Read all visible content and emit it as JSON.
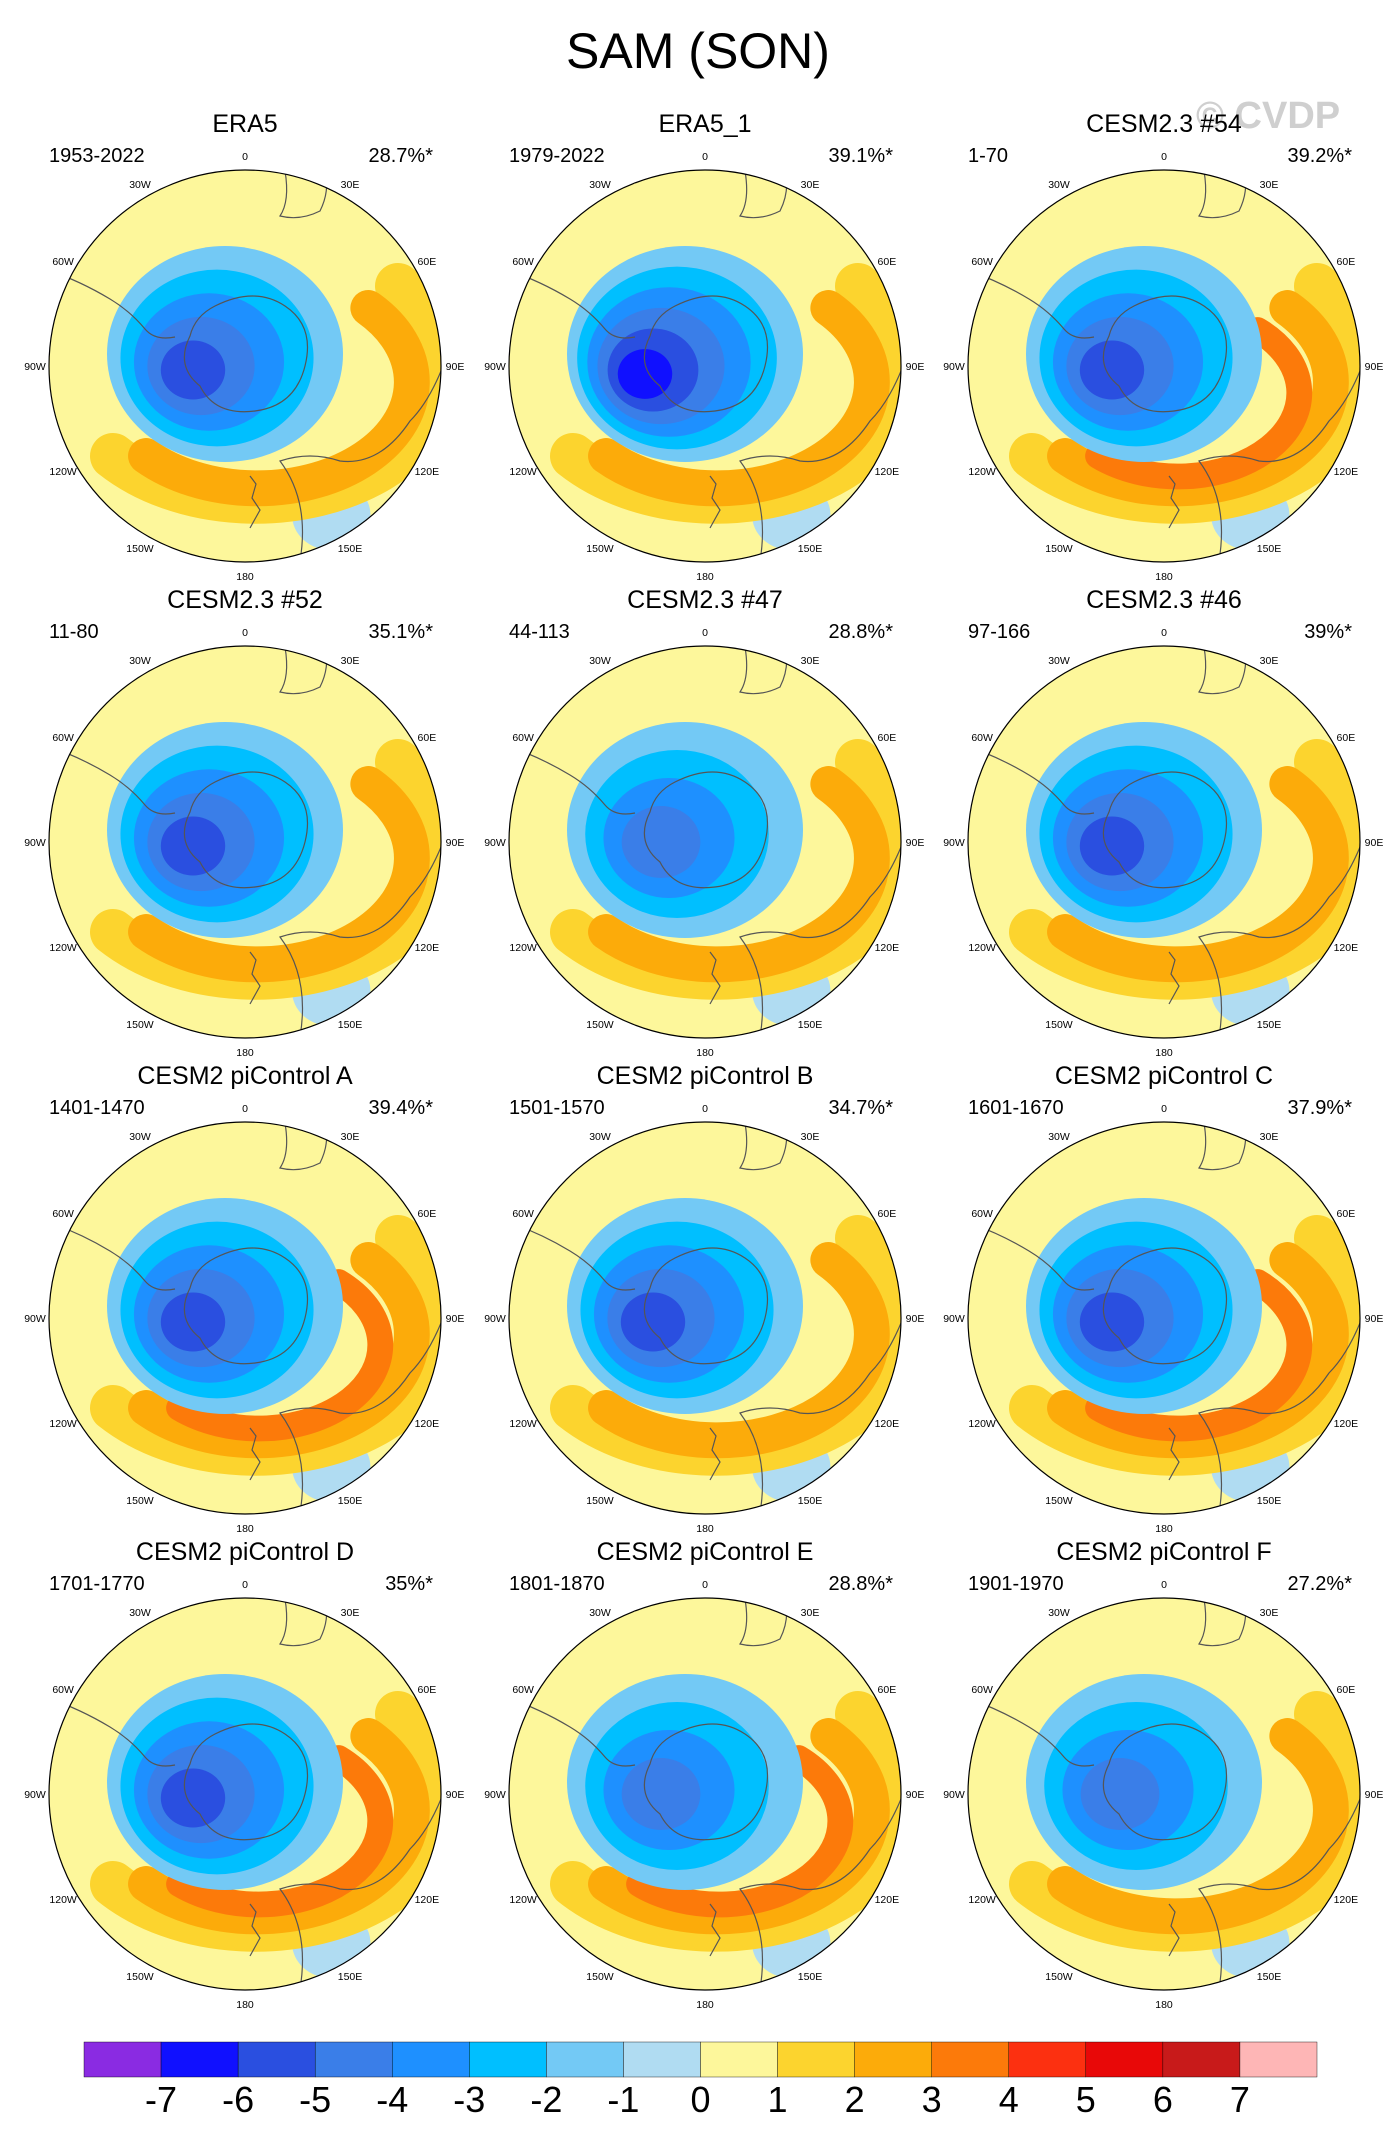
{
  "title": "SAM (SON)",
  "watermark": "© CVDP",
  "lon_labels": [
    "0",
    "30E",
    "60E",
    "90E",
    "120E",
    "150E",
    "180",
    "150W",
    "120W",
    "90W",
    "60W",
    "30W"
  ],
  "colorbar": {
    "colors": [
      "#8a2be2",
      "#1010ff",
      "#2a4fe0",
      "#3a7ee8",
      "#1e90ff",
      "#00bfff",
      "#73c9f5",
      "#b0dcf2",
      "#fdf79b",
      "#fcd42e",
      "#fcab0a",
      "#fc7a0a",
      "#fc3010",
      "#e80808",
      "#c81a1a",
      "#feb6b6"
    ],
    "labels": [
      "-7",
      "-6",
      "-5",
      "-4",
      "-3",
      "-2",
      "-1",
      "0",
      "1",
      "2",
      "3",
      "4",
      "5",
      "6",
      "7"
    ]
  },
  "chart_data": {
    "type": "heatmap",
    "projection": "south-polar-stereographic",
    "variable": "SAM pattern (SON)",
    "panels": [
      {
        "name": "ERA5",
        "period": "1953-2022",
        "pct": "28.7%*",
        "pos_amp": 2.6,
        "neg_amp": 4.8
      },
      {
        "name": "ERA5_1",
        "period": "1979-2022",
        "pct": "39.1%*",
        "pos_amp": 2.8,
        "neg_amp": 5.3
      },
      {
        "name": "CESM2.3 #54",
        "period": "1-70",
        "pct": "39.2%*",
        "pos_amp": 3.4,
        "neg_amp": 4.4
      },
      {
        "name": "CESM2.3 #52",
        "period": "11-80",
        "pct": "35.1%*",
        "pos_amp": 2.5,
        "neg_amp": 4.4
      },
      {
        "name": "CESM2.3 #47",
        "period": "44-113",
        "pct": "28.8%*",
        "pos_amp": 2.0,
        "neg_amp": 3.7
      },
      {
        "name": "CESM2.3 #46",
        "period": "97-166",
        "pct": "39%*",
        "pos_amp": 2.8,
        "neg_amp": 4.4
      },
      {
        "name": "CESM2 piControl A",
        "period": "1401-1470",
        "pct": "39.4%*",
        "pos_amp": 3.2,
        "neg_amp": 4.4
      },
      {
        "name": "CESM2 piControl B",
        "period": "1501-1570",
        "pct": "34.7%*",
        "pos_amp": 2.4,
        "neg_amp": 4.2
      },
      {
        "name": "CESM2 piControl C",
        "period": "1601-1670",
        "pct": "37.9%*",
        "pos_amp": 3.3,
        "neg_amp": 4.3
      },
      {
        "name": "CESM2 piControl D",
        "period": "1701-1770",
        "pct": "35%*",
        "pos_amp": 3.1,
        "neg_amp": 4.5
      },
      {
        "name": "CESM2 piControl E",
        "period": "1801-1870",
        "pct": "28.8%*",
        "pos_amp": 3.0,
        "neg_amp": 3.6
      },
      {
        "name": "CESM2 piControl F",
        "period": "1901-1970",
        "pct": "27.2%*",
        "pos_amp": 2.7,
        "neg_amp": 3.6
      }
    ]
  }
}
